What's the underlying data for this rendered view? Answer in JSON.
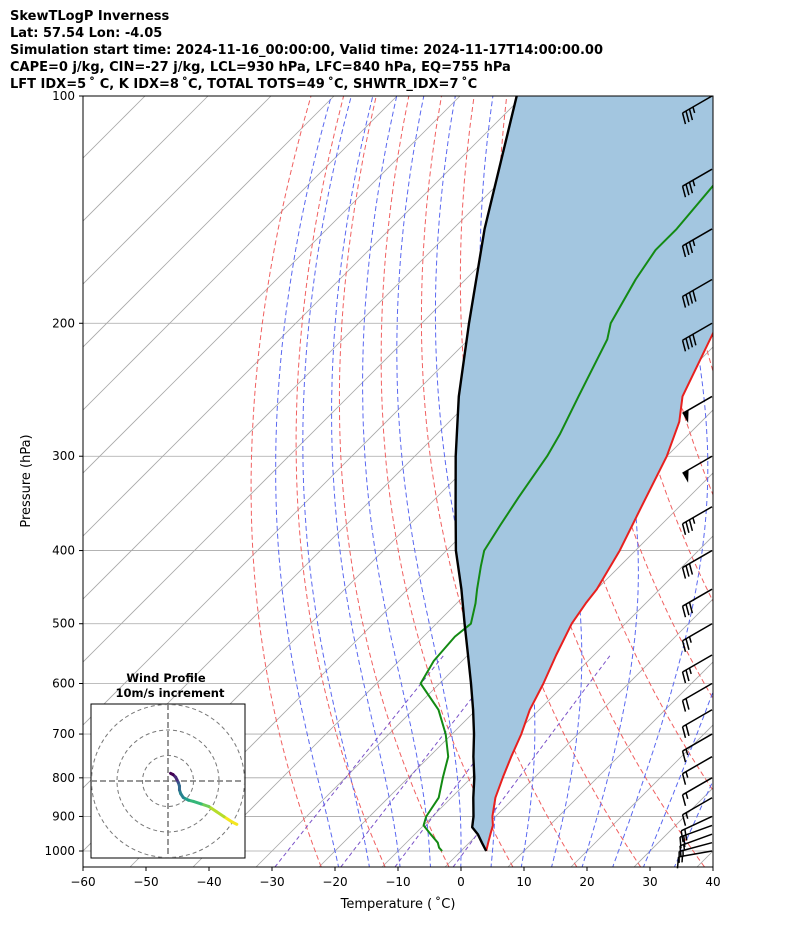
{
  "header": {
    "title": "SkewTLogP Inverness",
    "location": "Lat: 57.54   Lon: -4.05",
    "times": "Simulation start time: 2024-11-16_00:00:00, Valid time: 2024-11-17T14:00:00.00",
    "indices1": "CAPE=0 j/kg, CIN=-27 j/kg, LCL=930 hPa, LFC=840 hPa, EQ=755 hPa",
    "indices2": "LFT IDX=5 ˚ C, K IDX=8 ˚C, TOTAL TOTS=49 ˚C, SHWTR_IDX=7 ˚C"
  },
  "chart_data": {
    "type": "line",
    "subtype": "skew-T log-P",
    "xlabel": "Temperature ( ˚C)",
    "ylabel": "Pressure (hPa)",
    "xlim": [
      -60,
      40
    ],
    "plim": [
      1050,
      100
    ],
    "x_ticks": [
      -60,
      -50,
      -40,
      -30,
      -20,
      -10,
      0,
      10,
      20,
      30,
      40
    ],
    "p_ticks": [
      1000,
      900,
      800,
      700,
      600,
      500,
      400,
      300,
      200,
      100
    ],
    "grid": true,
    "colors": {
      "temperature": "#e8201e",
      "dewpoint": "#138a13",
      "parcel": "#000000",
      "shade": "#a3c6e0",
      "isotherm": "#a8a8a8",
      "dry_adiabat": "#f06060",
      "moist_adiabat": "#5a68f0",
      "mixing_ratio": "#7a52c8"
    },
    "series": [
      {
        "key": "temperature",
        "p": [
          1000,
          975,
          950,
          925,
          900,
          850,
          800,
          750,
          700,
          650,
          600,
          550,
          500,
          470,
          450,
          400,
          350,
          300,
          270,
          250,
          200,
          170,
          150,
          125,
          100
        ],
        "t": [
          4.0,
          3.0,
          2.0,
          1.0,
          -0.5,
          -3.0,
          -5.0,
          -7.0,
          -9.0,
          -11.5,
          -13.5,
          -16.0,
          -18.5,
          -19.5,
          -20.0,
          -22.5,
          -26.0,
          -30.0,
          -33.5,
          -37.0,
          -43.0,
          -47.0,
          -51.0,
          -56.0,
          -62.0
        ]
      },
      {
        "key": "dewpoint",
        "p": [
          1000,
          990,
          975,
          950,
          925,
          900,
          850,
          800,
          750,
          700,
          650,
          600,
          560,
          520,
          500,
          470,
          450,
          420,
          400,
          370,
          340,
          300,
          280,
          250,
          210,
          200,
          175,
          160,
          150,
          125,
          100
        ],
        "t": [
          -3.0,
          -4.0,
          -5.0,
          -7.5,
          -10.0,
          -11.0,
          -12.0,
          -14.5,
          -17.0,
          -21.0,
          -26.0,
          -33.0,
          -34.5,
          -35.0,
          -34.5,
          -37.0,
          -39.0,
          -42.0,
          -44.0,
          -45.5,
          -47.0,
          -49.0,
          -50.5,
          -53.5,
          -58.0,
          -60.0,
          -63.0,
          -64.5,
          -64.5,
          -66.0,
          -68.0
        ]
      },
      {
        "key": "parcel",
        "p": [
          1000,
          975,
          950,
          930,
          900,
          850,
          800,
          750,
          700,
          650,
          600,
          550,
          500,
          450,
          400,
          350,
          300,
          250,
          200,
          150,
          100
        ],
        "t": [
          4.0,
          2.0,
          0.0,
          -2.0,
          -3.5,
          -6.5,
          -9.5,
          -13.0,
          -16.5,
          -20.5,
          -25.0,
          -30.0,
          -35.5,
          -41.5,
          -48.5,
          -55.5,
          -63.5,
          -72.5,
          -82.5,
          -95.0,
          -111.0
        ]
      }
    ],
    "isotherm_step": 10,
    "dry_adiabats_theta_K": [
      250,
      260,
      270,
      280,
      290,
      300,
      310,
      320,
      330,
      340,
      350,
      360,
      370,
      380,
      390
    ],
    "moist_adiabats_thetaw_C": [
      -20,
      -15,
      -10,
      -5,
      0,
      5,
      10,
      15,
      20,
      25,
      30,
      35
    ],
    "mixing_ratio_gkg": [
      0.4,
      1,
      2,
      4
    ],
    "wind_barbs": {
      "p": [
        1000,
        975,
        950,
        925,
        900,
        850,
        800,
        750,
        700,
        650,
        600,
        550,
        500,
        450,
        400,
        350,
        300,
        250,
        200,
        175,
        150,
        125,
        100
      ],
      "speed": [
        15,
        15,
        15,
        20,
        20,
        15,
        15,
        15,
        15,
        20,
        20,
        25,
        25,
        30,
        30,
        35,
        50,
        50,
        40,
        40,
        35,
        35,
        35
      ],
      "dir": [
        260,
        255,
        250,
        250,
        245,
        240,
        240,
        240,
        240,
        240,
        240,
        240,
        240,
        240,
        240,
        240,
        240,
        240,
        240,
        240,
        240,
        240,
        240
      ]
    },
    "hodograph": {
      "title": "Wind Profile",
      "subtitle": "10m/s increment",
      "ring_step": 10,
      "rings": 3,
      "u": [
        27,
        25,
        22,
        19,
        16,
        13,
        10,
        8,
        6,
        5,
        4.5,
        4.5,
        4,
        3.5,
        3,
        2,
        1
      ],
      "v": [
        -17,
        -16,
        -14,
        -12,
        -10,
        -9,
        -8,
        -7.5,
        -6.5,
        -5,
        -3.5,
        -2,
        -0.5,
        0.5,
        1.5,
        2.5,
        3
      ]
    }
  }
}
